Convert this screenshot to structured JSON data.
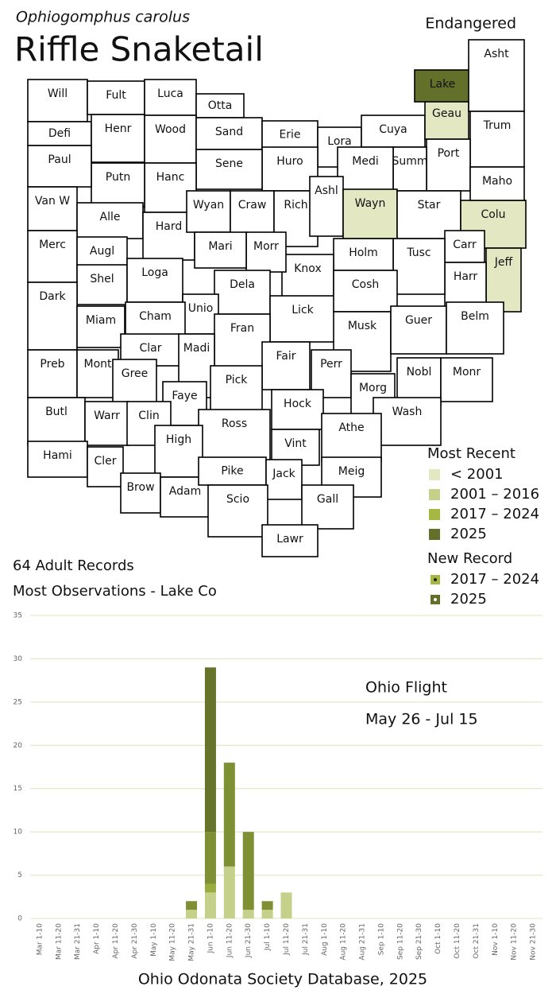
{
  "header": {
    "scientific_name": "Ophiogomphus carolus",
    "common_name": "Riffle Snaketail",
    "status": "Endangered",
    "records": "64 Adult Records",
    "most_observations": "Most Observations - Lake Co"
  },
  "map": {
    "legend_title": "Most Recent",
    "legend": [
      {
        "label": "< 2001",
        "color": "#e3e8c3"
      },
      {
        "label": "2001 – 2016",
        "color": "#c6d089"
      },
      {
        "label": "2017 – 2024",
        "color": "#a7b744"
      },
      {
        "label": "2025",
        "color": "#62702a"
      }
    ],
    "new_record_title": "New Record",
    "new_record": [
      {
        "label": "2017 – 2024",
        "color": "#a7b744"
      },
      {
        "label": "2025",
        "color": "#62702a"
      }
    ],
    "counties": [
      {
        "name": "Will"
      },
      {
        "name": "Fult"
      },
      {
        "name": "Luca"
      },
      {
        "name": "Otta"
      },
      {
        "name": "Defi"
      },
      {
        "name": "Henr"
      },
      {
        "name": "Wood"
      },
      {
        "name": "Sand"
      },
      {
        "name": "Erie"
      },
      {
        "name": "Lora"
      },
      {
        "name": "Cuya"
      },
      {
        "name": "Geau",
        "color": "#e3e8c3"
      },
      {
        "name": "Lake",
        "color": "#62702a"
      },
      {
        "name": "Asht"
      },
      {
        "name": "Trum"
      },
      {
        "name": "Port"
      },
      {
        "name": "Summ"
      },
      {
        "name": "Medi"
      },
      {
        "name": "Huro"
      },
      {
        "name": "Sene"
      },
      {
        "name": "Hanc"
      },
      {
        "name": "Putn"
      },
      {
        "name": "Paul"
      },
      {
        "name": "Van W"
      },
      {
        "name": "Alle"
      },
      {
        "name": "Hard"
      },
      {
        "name": "Wyan"
      },
      {
        "name": "Craw"
      },
      {
        "name": "Rich"
      },
      {
        "name": "Ashl"
      },
      {
        "name": "Wayn",
        "color": "#e3e8c3"
      },
      {
        "name": "Star"
      },
      {
        "name": "Colu",
        "color": "#e3e8c3"
      },
      {
        "name": "Maho"
      },
      {
        "name": "Carr"
      },
      {
        "name": "Jeff",
        "color": "#e3e8c3"
      },
      {
        "name": "Harr"
      },
      {
        "name": "Tusc"
      },
      {
        "name": "Holm"
      },
      {
        "name": "Knox"
      },
      {
        "name": "Morr"
      },
      {
        "name": "Mari"
      },
      {
        "name": "Merc"
      },
      {
        "name": "Augl"
      },
      {
        "name": "Shel"
      },
      {
        "name": "Loga"
      },
      {
        "name": "Dela"
      },
      {
        "name": "Unio"
      },
      {
        "name": "Cham"
      },
      {
        "name": "Lick"
      },
      {
        "name": "Cosh"
      },
      {
        "name": "Musk"
      },
      {
        "name": "Guer"
      },
      {
        "name": "Belm"
      },
      {
        "name": "Dark"
      },
      {
        "name": "Miam"
      },
      {
        "name": "Clar"
      },
      {
        "name": "Fran"
      },
      {
        "name": "Madi"
      },
      {
        "name": "Fair"
      },
      {
        "name": "Perr"
      },
      {
        "name": "Morg"
      },
      {
        "name": "Nobl"
      },
      {
        "name": "Monr"
      },
      {
        "name": "Wash"
      },
      {
        "name": "Preb"
      },
      {
        "name": "Mont"
      },
      {
        "name": "Gree"
      },
      {
        "name": "Faye"
      },
      {
        "name": "Pick"
      },
      {
        "name": "Hock"
      },
      {
        "name": "Athe"
      },
      {
        "name": "Butl"
      },
      {
        "name": "Warr"
      },
      {
        "name": "Clin"
      },
      {
        "name": "Ross"
      },
      {
        "name": "Vint"
      },
      {
        "name": "High"
      },
      {
        "name": "Hami"
      },
      {
        "name": "Cler"
      },
      {
        "name": "Brow"
      },
      {
        "name": "Adam"
      },
      {
        "name": "Pike"
      },
      {
        "name": "Jack"
      },
      {
        "name": "Meig"
      },
      {
        "name": "Gall"
      },
      {
        "name": "Scio"
      },
      {
        "name": "Lawr"
      }
    ]
  },
  "chart_data": {
    "type": "bar",
    "stacked": true,
    "annotations": [
      "Ohio Flight",
      "May 26 - Jul 15"
    ],
    "footer": "Ohio Odonata Society Database, 2025",
    "categories": [
      "Mar 1-10",
      "Mar 11-20",
      "Mar 21-31",
      "Apr 1-10",
      "Apr 11-20",
      "Apr 21-30",
      "May 1-10",
      "May 11-20",
      "May 21-31",
      "Jun 1-10",
      "Jun 11-20",
      "Jun 21-30",
      "Jul 1-10",
      "Jul 11-20",
      "Jul 21-31",
      "Aug 1-10",
      "Aug 11-20",
      "Aug 21-31",
      "Sep 1-10",
      "Sep 11-20",
      "Sep 21-30",
      "Oct 1-10",
      "Oct 11-20",
      "Oct 21-31",
      "Nov 1-10",
      "Nov 11-20",
      "Nov 21-30"
    ],
    "series": [
      {
        "color": "#c5d08b",
        "values": [
          0,
          0,
          0,
          0,
          0,
          0,
          0,
          0,
          1,
          3,
          6,
          1,
          1,
          3,
          0,
          0,
          0,
          0,
          0,
          0,
          0,
          0,
          0,
          0,
          0,
          0,
          0
        ]
      },
      {
        "color": "#9aab3f",
        "values": [
          0,
          0,
          0,
          0,
          0,
          0,
          0,
          0,
          0,
          1,
          0,
          0,
          0,
          0,
          0,
          0,
          0,
          0,
          0,
          0,
          0,
          0,
          0,
          0,
          0,
          0,
          0
        ]
      },
      {
        "color": "#7f8f33",
        "values": [
          0,
          0,
          0,
          0,
          0,
          0,
          0,
          0,
          1,
          6,
          12,
          9,
          1,
          0,
          0,
          0,
          0,
          0,
          0,
          0,
          0,
          0,
          0,
          0,
          0,
          0,
          0
        ]
      },
      {
        "color": "#65742a",
        "values": [
          0,
          0,
          0,
          0,
          0,
          0,
          0,
          0,
          0,
          19,
          0,
          0,
          0,
          0,
          0,
          0,
          0,
          0,
          0,
          0,
          0,
          0,
          0,
          0,
          0,
          0,
          0
        ]
      }
    ],
    "ylim": [
      0,
      35
    ],
    "yticks": [
      0,
      5,
      10,
      15,
      20,
      25,
      30,
      35
    ],
    "grid": true
  }
}
